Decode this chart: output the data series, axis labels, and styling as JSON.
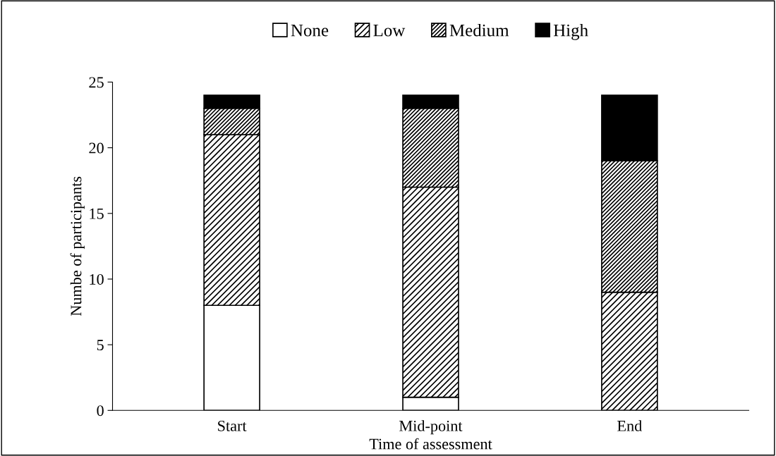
{
  "chart_data": {
    "type": "bar",
    "stacked": true,
    "xlabel": "Time of assessment",
    "ylabel": "Numbe of participants",
    "categories": [
      "Start",
      "Mid-point",
      "End"
    ],
    "series": [
      {
        "name": "None",
        "color": "#ffffff",
        "values": [
          8,
          1,
          0
        ]
      },
      {
        "name": "Low",
        "color": "#000000",
        "values": [
          13,
          16,
          9
        ]
      },
      {
        "name": "Medium",
        "color": "#000000",
        "values": [
          2,
          6,
          10
        ]
      },
      {
        "name": "High",
        "color": "#000000",
        "values": [
          1,
          1,
          5
        ]
      }
    ],
    "ylim": [
      0,
      25
    ],
    "yticks": [
      0,
      5,
      10,
      15,
      20,
      25
    ],
    "grid": false,
    "legend": "top"
  }
}
